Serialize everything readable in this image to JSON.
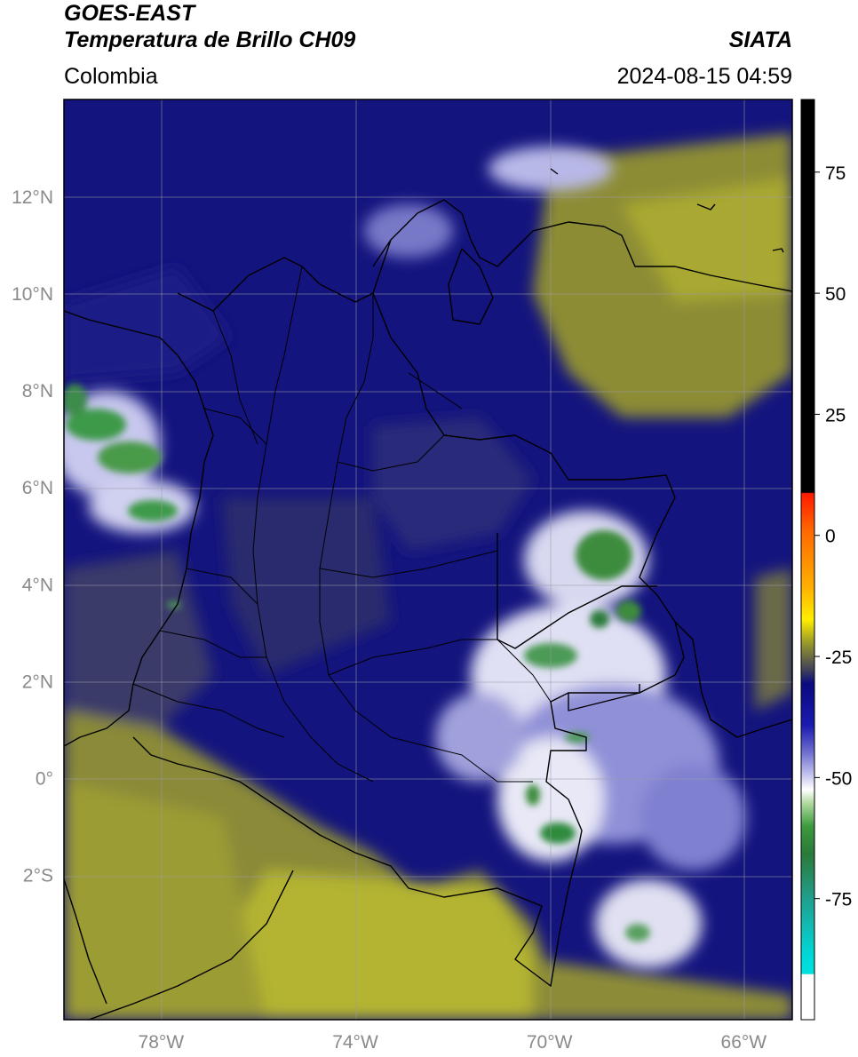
{
  "header": {
    "title_line1": "GOES-EAST",
    "title_line2": "Temperatura de Brillo CH09",
    "subtitle": "Colombia",
    "brand": "SIATA",
    "timestamp": "2024-08-15 04:59"
  },
  "map": {
    "lon_range": [
      -80,
      -65
    ],
    "lat_range": [
      -5,
      14
    ],
    "lat_ticks": [
      {
        "lat": 12,
        "label": "12°N"
      },
      {
        "lat": 10,
        "label": "10°N"
      },
      {
        "lat": 8,
        "label": "8°N"
      },
      {
        "lat": 6,
        "label": "6°N"
      },
      {
        "lat": 4,
        "label": "4°N"
      },
      {
        "lat": 2,
        "label": "2°N"
      },
      {
        "lat": 0,
        "label": "0°"
      },
      {
        "lat": -2,
        "label": "2°S"
      }
    ],
    "lon_ticks": [
      {
        "lon": -78,
        "label": "78°W"
      },
      {
        "lon": -74,
        "label": "74°W"
      },
      {
        "lon": -70,
        "label": "70°W"
      },
      {
        "lon": -66,
        "label": "66°W"
      }
    ]
  },
  "colorbar": {
    "range": [
      -100,
      90
    ],
    "ticks": [
      75,
      50,
      25,
      0,
      -25,
      -50,
      -75
    ],
    "colors": {
      "black": "#000000",
      "red": "#ff1a00",
      "orange": "#ff8800",
      "yellow": "#ffee00",
      "olive": "#8a8a2a",
      "navy": "#0a0a80",
      "lavender": "#b8b8e8",
      "white": "#ffffff",
      "green": "#2e8a2e",
      "teal": "#20b0a0",
      "cyan": "#00e0e0"
    }
  },
  "colors": {
    "cold_cloud_navy": "#101080",
    "dark_blue": "#1a1a78",
    "olive_warm": "#9a9a30",
    "yellow_warm": "#b0b030",
    "cloud_white": "#e8e8f4",
    "convective_green": "#3c8c4c"
  }
}
